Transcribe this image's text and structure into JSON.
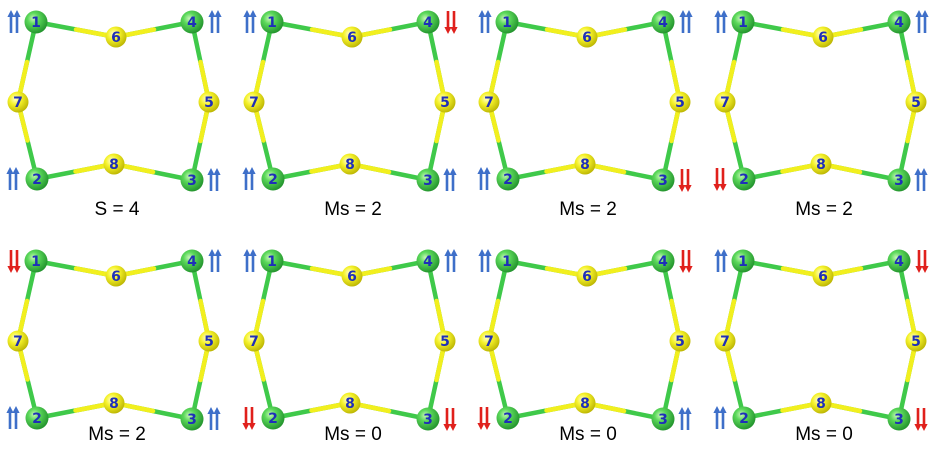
{
  "colors": {
    "metal": "#3fc94a",
    "bridge": "#f2ef1e",
    "label": "#1f2fb8",
    "spin_up": "#3e6fc9",
    "spin_down": "#e0201c"
  },
  "atom_labels": [
    "1",
    "2",
    "3",
    "4",
    "5",
    "6",
    "7",
    "8"
  ],
  "configurations": [
    {
      "caption": "S = 4",
      "spins": {
        "1": "up",
        "2": "up",
        "3": "up",
        "4": "up"
      }
    },
    {
      "caption": "Ms = 2",
      "spins": {
        "1": "up",
        "2": "up",
        "3": "up",
        "4": "down"
      }
    },
    {
      "caption": "Ms = 2",
      "spins": {
        "1": "up",
        "2": "up",
        "3": "down",
        "4": "up"
      }
    },
    {
      "caption": "Ms = 2",
      "spins": {
        "1": "up",
        "2": "down",
        "3": "up",
        "4": "up"
      }
    },
    {
      "caption": "Ms = 2",
      "spins": {
        "1": "down",
        "2": "up",
        "3": "up",
        "4": "up"
      }
    },
    {
      "caption": "Ms = 0",
      "spins": {
        "1": "up",
        "2": "down",
        "3": "down",
        "4": "up"
      }
    },
    {
      "caption": "Ms = 0",
      "spins": {
        "1": "up",
        "2": "down",
        "3": "up",
        "4": "down"
      }
    },
    {
      "caption": "Ms = 0",
      "spins": {
        "1": "up",
        "2": "up",
        "3": "down",
        "4": "down"
      }
    }
  ]
}
